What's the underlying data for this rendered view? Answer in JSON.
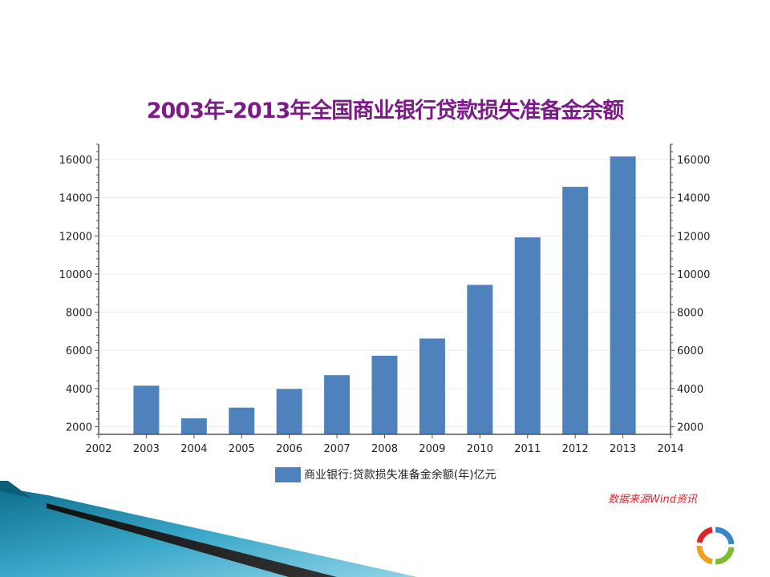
{
  "slide": {
    "title": "2003年-2013年全国商业银行贷款损失准备金余额",
    "source_note": "数据来源Wind资讯",
    "legend_label": "商业银行:贷款损失准备金余额(年)亿元"
  },
  "colors": {
    "title": "#7b1c87",
    "bar": "#4f81bd",
    "source_note": "#e0242c"
  },
  "chart_data": {
    "type": "bar",
    "x": [
      2003,
      2004,
      2005,
      2006,
      2007,
      2008,
      2009,
      2010,
      2011,
      2012,
      2013
    ],
    "series": [
      {
        "name": "商业银行:贷款损失准备金余额(年)亿元",
        "values": [
          4150,
          2440,
          3000,
          3980,
          4700,
          5720,
          6620,
          9430,
          11920,
          14570,
          16160
        ]
      }
    ],
    "x_ticks": [
      2002,
      2003,
      2004,
      2005,
      2006,
      2007,
      2008,
      2009,
      2010,
      2011,
      2012,
      2013,
      2014
    ],
    "y_ticks": [
      2000,
      4000,
      6000,
      8000,
      10000,
      12000,
      14000,
      16000
    ],
    "xlim": [
      2002,
      2014
    ],
    "ylim": [
      1600,
      16800
    ],
    "grid": true,
    "legend_position": "bottom",
    "secondary_y_axis": true
  }
}
